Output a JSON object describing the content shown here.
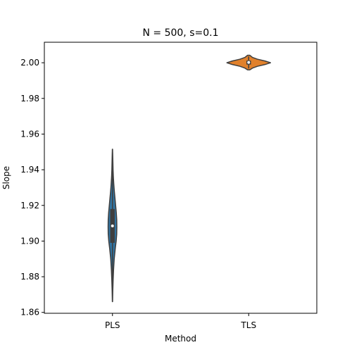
{
  "chart_data": {
    "type": "violin",
    "title": "N = 500, s=0.1",
    "xlabel": "Method",
    "ylabel": "Slope",
    "categories": [
      "PLS",
      "TLS"
    ],
    "ylim": [
      1.8595,
      2.0115
    ],
    "yticks": [
      1.86,
      1.88,
      1.9,
      1.92,
      1.94,
      1.96,
      1.98,
      2.0
    ],
    "ytick_labels": [
      "1.86",
      "1.88",
      "1.90",
      "1.92",
      "1.94",
      "1.96",
      "1.98",
      "2.00"
    ],
    "grid": false,
    "legend": "none",
    "series": [
      {
        "category": "PLS",
        "color": "#3274a1",
        "min": 1.866,
        "q1": 1.899,
        "median": 1.9085,
        "q3": 1.918,
        "max": 1.9515,
        "whisker_low": 1.876,
        "whisker_high": 1.941,
        "profile": [
          [
            1.866,
            0.002
          ],
          [
            1.872,
            0.006
          ],
          [
            1.878,
            0.012
          ],
          [
            1.884,
            0.02
          ],
          [
            1.89,
            0.032
          ],
          [
            1.896,
            0.052
          ],
          [
            1.9,
            0.068
          ],
          [
            1.904,
            0.078
          ],
          [
            1.908,
            0.08
          ],
          [
            1.912,
            0.078
          ],
          [
            1.916,
            0.07
          ],
          [
            1.92,
            0.058
          ],
          [
            1.924,
            0.046
          ],
          [
            1.928,
            0.034
          ],
          [
            1.932,
            0.024
          ],
          [
            1.936,
            0.016
          ],
          [
            1.94,
            0.011
          ],
          [
            1.944,
            0.008
          ],
          [
            1.948,
            0.005
          ],
          [
            1.9515,
            0.002
          ]
        ]
      },
      {
        "category": "TLS",
        "color": "#e1812c",
        "min": 1.996,
        "q1": 1.999,
        "median": 2.0002,
        "q3": 2.0012,
        "max": 2.0042,
        "whisker_low": 1.9968,
        "whisker_high": 2.0035,
        "profile": [
          [
            1.996,
            0.02
          ],
          [
            1.997,
            0.07
          ],
          [
            1.998,
            0.16
          ],
          [
            1.999,
            0.3
          ],
          [
            2.0,
            0.4
          ],
          [
            2.001,
            0.3
          ],
          [
            2.002,
            0.16
          ],
          [
            2.003,
            0.07
          ],
          [
            2.0042,
            0.02
          ]
        ]
      }
    ]
  }
}
